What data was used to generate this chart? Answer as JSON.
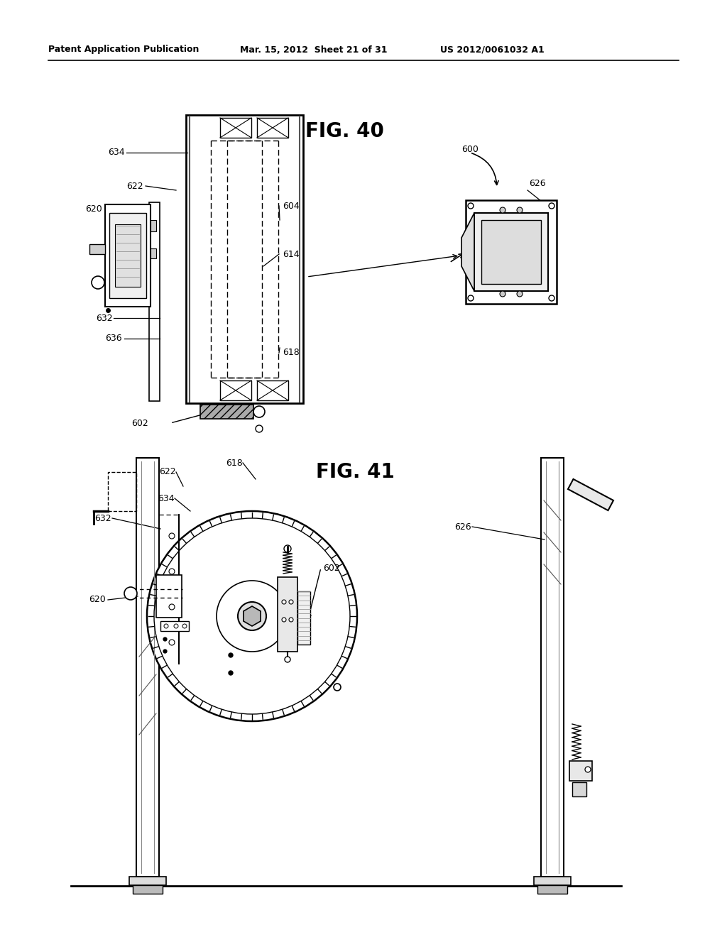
{
  "bg_color": "#ffffff",
  "header_left": "Patent Application Publication",
  "header_mid": "Mar. 15, 2012  Sheet 21 of 31",
  "header_right": "US 2012/0061032 A1",
  "fig40_label": "FIG. 40",
  "fig41_label": "FIG. 41",
  "line_color": "#000000"
}
